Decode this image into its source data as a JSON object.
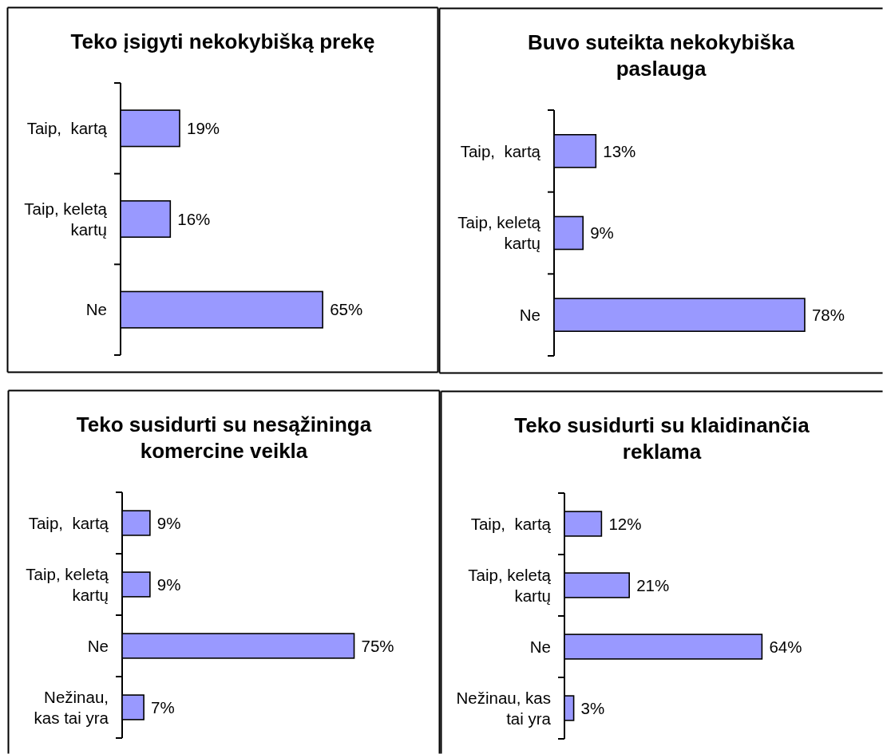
{
  "chart_data": [
    {
      "type": "bar",
      "orientation": "horizontal",
      "title": "Teko įsigyti nekokybišką prekę",
      "categories": [
        "Taip,  kartą",
        "Taip, keletą kartų",
        "Ne"
      ],
      "values": [
        19,
        16,
        65
      ],
      "value_labels": [
        "19%",
        "16%",
        "65%"
      ],
      "color": "#9999ff"
    },
    {
      "type": "bar",
      "orientation": "horizontal",
      "title": "Buvo suteikta nekokybiška paslauga",
      "categories": [
        "Taip,  kartą",
        "Taip, keletą kartų",
        "Ne"
      ],
      "values": [
        13,
        9,
        78
      ],
      "value_labels": [
        "13%",
        "9%",
        "78%"
      ],
      "color": "#9999ff"
    },
    {
      "type": "bar",
      "orientation": "horizontal",
      "title": "Teko susidurti su nesąžininga komercine veikla",
      "categories": [
        "Taip,  kartą",
        "Taip, keletą kartų",
        "Ne",
        "Nežinau, kas tai yra"
      ],
      "values": [
        9,
        9,
        75,
        7
      ],
      "value_labels": [
        "9%",
        "9%",
        "75%",
        "7%"
      ],
      "color": "#9999ff"
    },
    {
      "type": "bar",
      "orientation": "horizontal",
      "title": "Teko susidurti su klaidinančia reklama",
      "categories": [
        "Taip,  kartą",
        "Taip, keletą kartų",
        "Ne",
        "Nežinau, kas tai yra"
      ],
      "values": [
        12,
        21,
        64,
        3
      ],
      "value_labels": [
        "12%",
        "21%",
        "64%",
        "3%"
      ],
      "color": "#9999ff"
    }
  ]
}
